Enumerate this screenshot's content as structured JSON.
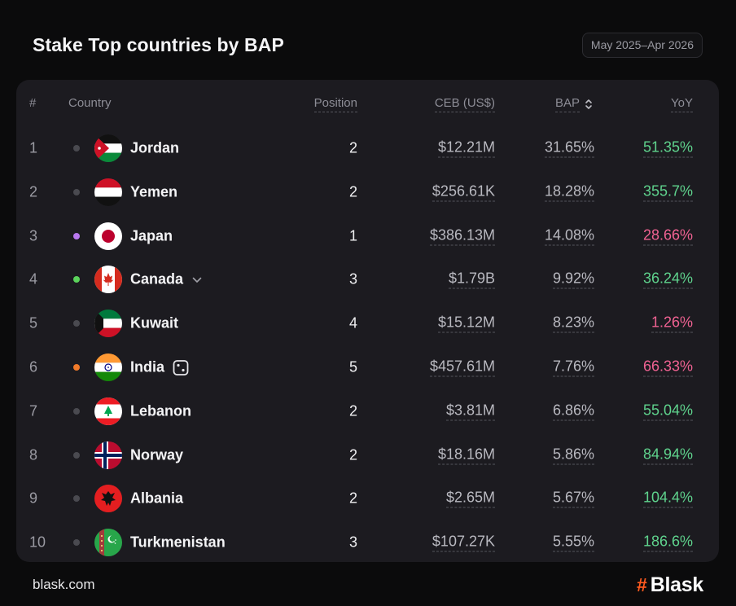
{
  "header": {
    "title": "Stake Top countries by BAP",
    "date_range": "May 2025–Apr 2026"
  },
  "table": {
    "columns": {
      "rank": "#",
      "country": "Country",
      "position": "Position",
      "ceb": "CEB (US$)",
      "bap": "BAP",
      "yoy": "YoY"
    },
    "sort_icon": "sort-updown-icon",
    "rows": [
      {
        "rank": "1",
        "dot": "#4a4a50",
        "flag": "jordan-flag-icon",
        "country": "Jordan",
        "position": "2",
        "ceb": "$12.21M",
        "bap": "31.65%",
        "yoy": "51.35%",
        "yoy_color": "#5fd38d"
      },
      {
        "rank": "2",
        "dot": "#4a4a50",
        "flag": "yemen-flag-icon",
        "country": "Yemen",
        "position": "2",
        "ceb": "$256.61K",
        "bap": "18.28%",
        "yoy": "355.7%",
        "yoy_color": "#5fd38d"
      },
      {
        "rank": "3",
        "dot": "#b978f0",
        "flag": "japan-flag-icon",
        "country": "Japan",
        "position": "1",
        "ceb": "$386.13M",
        "bap": "14.08%",
        "yoy": "28.66%",
        "yoy_color": "#f06292"
      },
      {
        "rank": "4",
        "dot": "#5bd35b",
        "flag": "canada-flag-icon",
        "country": "Canada",
        "extra_icon": "chevron-down-icon",
        "position": "3",
        "ceb": "$1.79B",
        "bap": "9.92%",
        "yoy": "36.24%",
        "yoy_color": "#5fd38d"
      },
      {
        "rank": "5",
        "dot": "#4a4a50",
        "flag": "kuwait-flag-icon",
        "country": "Kuwait",
        "position": "4",
        "ceb": "$15.12M",
        "bap": "8.23%",
        "yoy": "1.26%",
        "yoy_color": "#f06292"
      },
      {
        "rank": "6",
        "dot": "#f07a2a",
        "flag": "india-flag-icon",
        "country": "India",
        "extra_icon": "dice-icon",
        "position": "5",
        "ceb": "$457.61M",
        "bap": "7.76%",
        "yoy": "66.33%",
        "yoy_color": "#f06292"
      },
      {
        "rank": "7",
        "dot": "#4a4a50",
        "flag": "lebanon-flag-icon",
        "country": "Lebanon",
        "position": "2",
        "ceb": "$3.81M",
        "bap": "6.86%",
        "yoy": "55.04%",
        "yoy_color": "#5fd38d"
      },
      {
        "rank": "8",
        "dot": "#4a4a50",
        "flag": "norway-flag-icon",
        "country": "Norway",
        "position": "2",
        "ceb": "$18.16M",
        "bap": "5.86%",
        "yoy": "84.94%",
        "yoy_color": "#5fd38d"
      },
      {
        "rank": "9",
        "dot": "#4a4a50",
        "flag": "albania-flag-icon",
        "country": "Albania",
        "position": "2",
        "ceb": "$2.65M",
        "bap": "5.67%",
        "yoy": "104.4%",
        "yoy_color": "#5fd38d"
      },
      {
        "rank": "10",
        "dot": "#4a4a50",
        "flag": "turkmenistan-flag-icon",
        "country": "Turkmenistan",
        "position": "3",
        "ceb": "$107.27K",
        "bap": "5.55%",
        "yoy": "186.6%",
        "yoy_color": "#5fd38d"
      }
    ]
  },
  "footer": {
    "site": "blask.com",
    "logo_mark": "#",
    "logo_text": "Blask"
  },
  "colors": {
    "background": "#0b0b0c",
    "card": "#1c1b20",
    "positive": "#5fd38d",
    "negative": "#f06292",
    "brand": "#ff5a1f"
  }
}
